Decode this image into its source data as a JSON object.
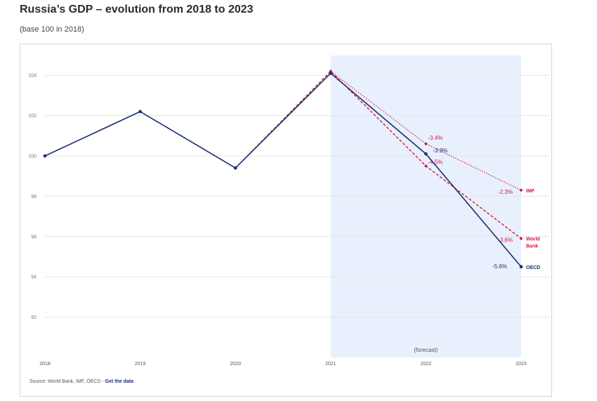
{
  "page": {
    "title": "Russia’s GDP – evolution from 2018 to 2023",
    "subtitle": "(base 100 in 2018)",
    "source_prefix": "Source: World Bank, IMF, OECD - ",
    "source_link": "Get the data"
  },
  "chart_data": {
    "type": "line",
    "title": "Russia’s GDP – evolution from 2018 to 2023",
    "subtitle": "(base 100 in 2018)",
    "x": [
      2018,
      2019,
      2020,
      2021,
      2022,
      2023
    ],
    "ylim": [
      90,
      105
    ],
    "yticks": [
      92,
      94,
      96,
      98,
      100,
      102,
      104
    ],
    "grid": true,
    "forecast_band": {
      "from": 2021,
      "to": 2023,
      "label": "(forecast)"
    },
    "colors": {
      "oecd": "#1c2e6e",
      "forecast": "#d9163e",
      "band": "#e8f0fd",
      "grid": "#e6e6e6",
      "tick": "#777777"
    },
    "series": [
      {
        "name": "OECD",
        "label": "OECD",
        "style": "solid",
        "points": [
          [
            2018,
            100
          ],
          [
            2019,
            102.2
          ],
          [
            2020,
            99.4
          ],
          [
            2021,
            104.1
          ],
          [
            2022,
            100.1
          ],
          [
            2023,
            94.5
          ]
        ],
        "annotations": [
          {
            "x": 2022,
            "text": "-3.9%"
          },
          {
            "x": 2023,
            "text": "-5.6%"
          }
        ]
      },
      {
        "name": "IMF",
        "label": "IMF",
        "style": "dotted",
        "points": [
          [
            2021,
            104.2
          ],
          [
            2022,
            100.6
          ],
          [
            2023,
            98.3
          ]
        ],
        "annotations": [
          {
            "x": 2022,
            "text": "-3.4%"
          },
          {
            "x": 2023,
            "text": "-2.3%"
          }
        ]
      },
      {
        "name": "World Bank",
        "label": "World Bank",
        "style": "dashed",
        "points": [
          [
            2020,
            99.4
          ],
          [
            2021,
            104.2
          ],
          [
            2022,
            99.5
          ],
          [
            2023,
            95.9
          ]
        ],
        "annotations": [
          {
            "x": 2022,
            "text": "-4.5%"
          },
          {
            "x": 2023,
            "text": "-3.6%"
          }
        ]
      }
    ]
  }
}
